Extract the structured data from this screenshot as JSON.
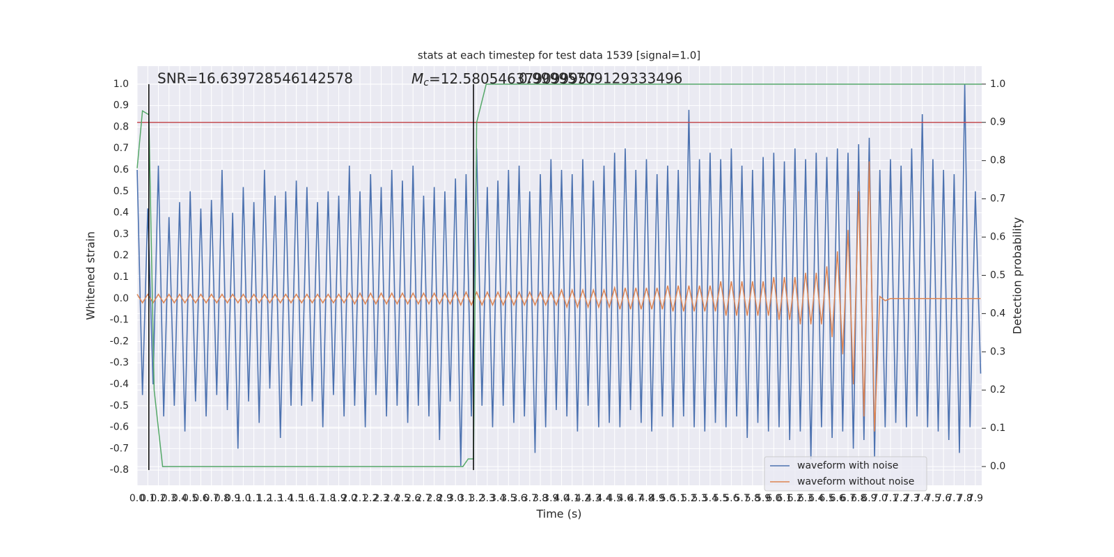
{
  "chart_data": {
    "type": "line",
    "title": "stats at each timestep for test data 1539 [signal=1.0]",
    "xlabel": "Time (s)",
    "ylabel": "Whitened strain",
    "y2label": "Detection probability",
    "annotations": [
      {
        "text": "SNR=16.639728546142578"
      },
      {
        "symbol": "M",
        "subscript": "c",
        "text": "=12.580546379099957"
      },
      {
        "text": "0.99995709129333496"
      }
    ],
    "x": [
      0,
      0.05,
      0.1,
      0.15,
      0.2,
      0.25,
      0.3,
      0.35,
      0.4,
      0.45,
      0.5,
      0.55,
      0.6,
      0.65,
      0.7,
      0.75,
      0.8,
      0.85,
      0.9,
      0.95,
      1,
      1.05,
      1.1,
      1.15,
      1.2,
      1.25,
      1.3,
      1.35,
      1.4,
      1.45,
      1.5,
      1.55,
      1.6,
      1.65,
      1.7,
      1.75,
      1.8,
      1.85,
      1.9,
      1.95,
      2,
      2.05,
      2.1,
      2.15,
      2.2,
      2.25,
      2.3,
      2.35,
      2.4,
      2.45,
      2.5,
      2.55,
      2.6,
      2.65,
      2.7,
      2.75,
      2.8,
      2.85,
      2.9,
      2.95,
      3,
      3.05,
      3.1,
      3.15,
      3.2,
      3.25,
      3.3,
      3.35,
      3.4,
      3.45,
      3.5,
      3.55,
      3.6,
      3.65,
      3.7,
      3.75,
      3.8,
      3.85,
      3.9,
      3.95,
      4,
      4.05,
      4.1,
      4.15,
      4.2,
      4.25,
      4.3,
      4.35,
      4.4,
      4.45,
      4.5,
      4.55,
      4.6,
      4.65,
      4.7,
      4.75,
      4.8,
      4.85,
      4.9,
      4.95,
      5,
      5.05,
      5.1,
      5.15,
      5.2,
      5.25,
      5.3,
      5.35,
      5.4,
      5.45,
      5.5,
      5.55,
      5.6,
      5.65,
      5.7,
      5.75,
      5.8,
      5.85,
      5.9,
      5.95,
      6,
      6.05,
      6.1,
      6.15,
      6.2,
      6.25,
      6.3,
      6.35,
      6.4,
      6.45,
      6.5,
      6.55,
      6.6,
      6.65,
      6.7,
      6.75,
      6.8,
      6.85,
      6.9,
      6.95,
      7,
      7.05,
      7.1,
      7.15,
      7.2,
      7.25,
      7.3,
      7.35,
      7.4,
      7.45,
      7.5,
      7.55,
      7.6,
      7.65,
      7.7,
      7.75,
      7.8,
      7.85,
      7.9,
      7.95
    ],
    "series": [
      {
        "name": "waveform with noise",
        "color": "#4c72b0",
        "values": [
          0.6,
          -0.45,
          0.42,
          -0.4,
          0.62,
          -0.55,
          0.38,
          -0.5,
          0.45,
          -0.62,
          0.5,
          -0.48,
          0.42,
          -0.55,
          0.46,
          -0.45,
          0.6,
          -0.52,
          0.4,
          -0.7,
          0.52,
          -0.48,
          0.45,
          -0.58,
          0.6,
          -0.42,
          0.48,
          -0.65,
          0.5,
          -0.5,
          0.55,
          -0.5,
          0.52,
          -0.48,
          0.45,
          -0.6,
          0.5,
          -0.45,
          0.48,
          -0.55,
          0.62,
          -0.5,
          0.5,
          -0.6,
          0.58,
          -0.45,
          0.52,
          -0.55,
          0.6,
          -0.5,
          0.55,
          -0.58,
          0.62,
          -0.5,
          0.48,
          -0.55,
          0.52,
          -0.66,
          0.5,
          -0.48,
          0.56,
          -0.78,
          0.58,
          -0.55,
          0.7,
          -0.5,
          0.52,
          -0.6,
          0.55,
          -0.5,
          0.6,
          -0.58,
          0.62,
          -0.55,
          0.5,
          -0.72,
          0.58,
          -0.6,
          0.65,
          -0.52,
          0.6,
          -0.55,
          0.58,
          -0.62,
          0.65,
          -0.5,
          0.55,
          -0.6,
          0.62,
          -0.58,
          0.68,
          -0.6,
          0.7,
          -0.52,
          0.6,
          -0.58,
          0.65,
          -0.62,
          0.58,
          -0.55,
          0.62,
          -0.6,
          0.6,
          -0.55,
          0.88,
          -0.6,
          0.65,
          -0.62,
          0.68,
          -0.58,
          0.65,
          -0.6,
          0.7,
          -0.55,
          0.62,
          -0.65,
          0.6,
          -0.58,
          0.66,
          -0.62,
          0.68,
          -0.6,
          0.64,
          -0.66,
          0.7,
          -0.62,
          0.65,
          -0.75,
          0.68,
          -0.6,
          0.66,
          -0.65,
          0.7,
          -0.62,
          0.68,
          -0.7,
          0.72,
          -0.66,
          0.75,
          -0.74,
          0.6,
          -0.6,
          0.65,
          -0.58,
          0.62,
          -0.6,
          0.7,
          -0.55,
          0.86,
          -0.6,
          0.65,
          -0.62,
          0.6,
          -0.66,
          0.58,
          -0.72,
          1.0,
          -0.6,
          0.5,
          -0.35
        ]
      },
      {
        "name": "waveform without noise",
        "color": "#dd8452",
        "values": [
          0.02,
          -0.02,
          0.02,
          -0.02,
          0.02,
          -0.02,
          0.02,
          -0.02,
          0.02,
          -0.02,
          0.02,
          -0.02,
          0.02,
          -0.02,
          0.02,
          -0.02,
          0.02,
          -0.02,
          0.02,
          -0.02,
          0.02,
          -0.02,
          0.02,
          -0.02,
          0.02,
          -0.02,
          0.02,
          -0.02,
          0.02,
          -0.02,
          0.02,
          -0.02,
          0.02,
          -0.02,
          0.02,
          -0.02,
          0.02,
          -0.02,
          0.02,
          -0.02,
          0.025,
          -0.025,
          0.025,
          -0.025,
          0.025,
          -0.025,
          0.025,
          -0.025,
          0.025,
          -0.025,
          0.025,
          -0.025,
          0.025,
          -0.025,
          0.025,
          -0.025,
          0.025,
          -0.025,
          0.025,
          -0.025,
          0.03,
          -0.03,
          0.03,
          -0.03,
          0.03,
          -0.03,
          0.03,
          -0.03,
          0.03,
          -0.03,
          0.03,
          -0.03,
          0.03,
          -0.03,
          0.03,
          -0.03,
          0.03,
          -0.03,
          0.03,
          -0.03,
          0.04,
          -0.04,
          0.04,
          -0.04,
          0.04,
          -0.04,
          0.04,
          -0.04,
          0.04,
          -0.04,
          0.05,
          -0.05,
          0.05,
          -0.05,
          0.05,
          -0.05,
          0.05,
          -0.05,
          0.05,
          -0.05,
          0.06,
          -0.06,
          0.06,
          -0.06,
          0.06,
          -0.06,
          0.06,
          -0.06,
          0.06,
          -0.06,
          0.08,
          -0.08,
          0.08,
          -0.08,
          0.08,
          -0.08,
          0.08,
          -0.08,
          0.08,
          -0.08,
          0.1,
          -0.1,
          0.1,
          -0.1,
          0.1,
          -0.12,
          0.12,
          -0.12,
          0.12,
          -0.12,
          0.15,
          -0.18,
          0.22,
          -0.26,
          0.32,
          -0.4,
          0.5,
          -0.55,
          0.64,
          -0.62,
          0.01,
          -0.01,
          0,
          0,
          0,
          0,
          0,
          0,
          0,
          0,
          0,
          0,
          0,
          0,
          0,
          0,
          0,
          0,
          0,
          0
        ]
      }
    ],
    "probability": {
      "color": "#55a868",
      "axis": "y2",
      "x": [
        0,
        0.05,
        0.11,
        0.16,
        0.24,
        3.07,
        3.12,
        3.17,
        3.2,
        3.29,
        7.96
      ],
      "values": [
        0.78,
        0.93,
        0.92,
        0.2,
        0,
        0,
        0.02,
        0.02,
        0.9,
        1.0,
        1.0
      ]
    },
    "threshold": {
      "value": 0.9,
      "axis": "y2",
      "color": "#c44e52"
    },
    "vlines": {
      "x": [
        0.11,
        3.17
      ],
      "ymin": -0.8,
      "ymax": 1.0,
      "color": "#000000"
    },
    "xlim": [
      0,
      7.96
    ],
    "ylim": [
      -0.871,
      1.084
    ],
    "y2lim": [
      -0.049,
      1.047
    ],
    "xticks": [
      {
        "value": 0,
        "label": "0.0"
      },
      0.1,
      0.2,
      0.3,
      0.4,
      0.5,
      0.6,
      0.7,
      0.8,
      0.9,
      {
        "value": 1,
        "label": "1.0"
      },
      1.1,
      1.2,
      1.3,
      1.4,
      1.5,
      1.6,
      1.7,
      1.8,
      1.9,
      {
        "value": 2,
        "label": "2.0"
      },
      2.1,
      2.2,
      2.3,
      2.4,
      2.5,
      2.6,
      2.7,
      2.8,
      2.9,
      {
        "value": 3,
        "label": "3.0"
      },
      3.1,
      3.2,
      3.3,
      3.4,
      3.5,
      3.6,
      3.7,
      3.8,
      3.9,
      {
        "value": 4,
        "label": "4.0"
      },
      4.1,
      4.2,
      4.3,
      4.4,
      4.5,
      4.6,
      4.7,
      4.8,
      4.9,
      {
        "value": 5,
        "label": "5.0"
      },
      5.1,
      5.2,
      5.3,
      5.4,
      5.5,
      5.6,
      5.7,
      5.8,
      5.9,
      {
        "value": 6,
        "label": "6.0"
      },
      6.1,
      6.2,
      6.3,
      6.4,
      6.5,
      6.6,
      6.7,
      6.8,
      6.9,
      {
        "value": 7,
        "label": "7.0"
      },
      7.1,
      7.2,
      7.3,
      7.4,
      7.5,
      7.6,
      7.7,
      7.8,
      7.9
    ],
    "yticks": [
      -0.8,
      -0.7,
      -0.6,
      -0.5,
      -0.4,
      -0.3,
      -0.2,
      -0.1,
      {
        "value": 0,
        "label": "0.0"
      },
      0.1,
      0.2,
      0.3,
      0.4,
      0.5,
      0.6,
      0.7,
      0.8,
      0.9,
      {
        "value": 1,
        "label": "1.0"
      }
    ],
    "y2ticks": [
      {
        "value": 0,
        "label": "0.0"
      },
      0.1,
      0.2,
      0.3,
      0.4,
      0.5,
      0.6,
      0.7,
      0.8,
      0.9,
      {
        "value": 1,
        "label": "1.0"
      }
    ],
    "grid": true,
    "legend": "lower right"
  }
}
